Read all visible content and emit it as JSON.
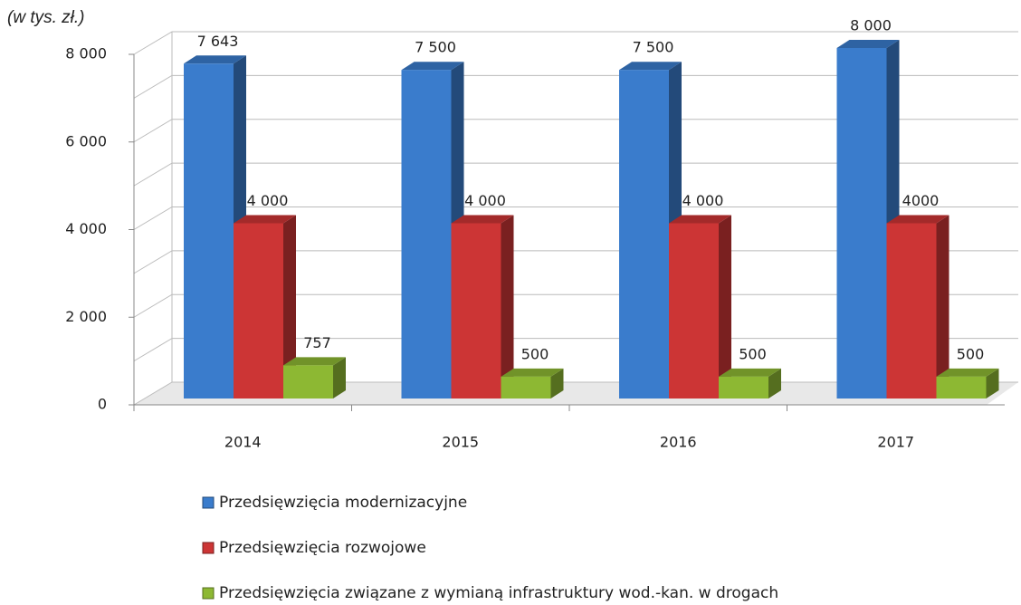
{
  "chart_data": {
    "type": "bar3d",
    "y_axis_label": "(w tys. zł.)",
    "categories": [
      "2014",
      "2015",
      "2016",
      "2017"
    ],
    "series": [
      {
        "name": "Przedsięwzięcia modernizacyjne",
        "color": "#3a7ccc",
        "values": [
          7643,
          7500,
          7500,
          8000
        ],
        "value_labels": [
          "7 643",
          "7 500",
          "7 500",
          "8 000"
        ]
      },
      {
        "name": "Przedsięwzięcia rozwojowe",
        "color": "#cc3535",
        "values": [
          4000,
          4000,
          4000,
          4000
        ],
        "value_labels": [
          "4 000",
          "4 000",
          "4 000",
          "4000"
        ]
      },
      {
        "name": "Przedsięwzięcia związane z wymianą infrastruktury wod.-kan. w drogach",
        "color": "#8db833",
        "values": [
          757,
          500,
          500,
          500
        ]
      }
    ],
    "ylim": [
      0,
      8000
    ],
    "yticks": [
      0,
      {
        "value": 2000,
        "label": "2 000"
      },
      {
        "value": 4000,
        "label": "4 000"
      },
      {
        "value": 6000,
        "label": "6 000"
      },
      {
        "value": 8000,
        "label": "8 000"
      }
    ],
    "minor_yticks": [
      1000,
      3000,
      5000,
      7000
    ],
    "grid": true,
    "legend": "bottom"
  }
}
